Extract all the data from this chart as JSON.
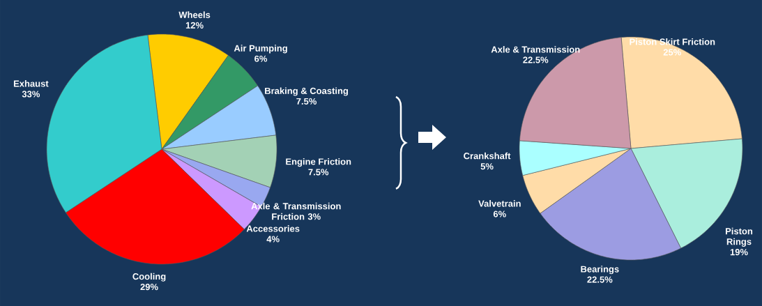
{
  "chart_data": [
    {
      "type": "pie",
      "categories": [
        "Wheels",
        "Air Pumping",
        "Braking & Coasting",
        "Engine Friction",
        "Axle & Transmission Friction",
        "Accessories",
        "Cooling",
        "Exhaust"
      ],
      "values": [
        12,
        6,
        7.5,
        7.5,
        3,
        4,
        29,
        33
      ],
      "value_labels": [
        "12%",
        "6%",
        "7.5%",
        "7.5%",
        "3%",
        "4%",
        "29%",
        "33%"
      ],
      "colors": [
        "#ffcc00",
        "#339966",
        "#99ccff",
        "#a3d1b5",
        "#99a8f0",
        "#cc99ff",
        "#ff0000",
        "#33cccc"
      ]
    },
    {
      "type": "pie",
      "categories": [
        "Piston Skirt Friction",
        "Piston Rings",
        "Bearings",
        "Valvetrain",
        "Crankshaft",
        "Axle & Transmission"
      ],
      "values": [
        25,
        19,
        22.5,
        6,
        5,
        22.5
      ],
      "value_labels": [
        "25%",
        "19%",
        "22.5%",
        "6%",
        "5%",
        "22.5%"
      ],
      "colors": [
        "#ffdca8",
        "#aaeedd",
        "#9c9ce2",
        "#ffdca8",
        "#aaffff",
        "#cc99aa"
      ]
    }
  ]
}
